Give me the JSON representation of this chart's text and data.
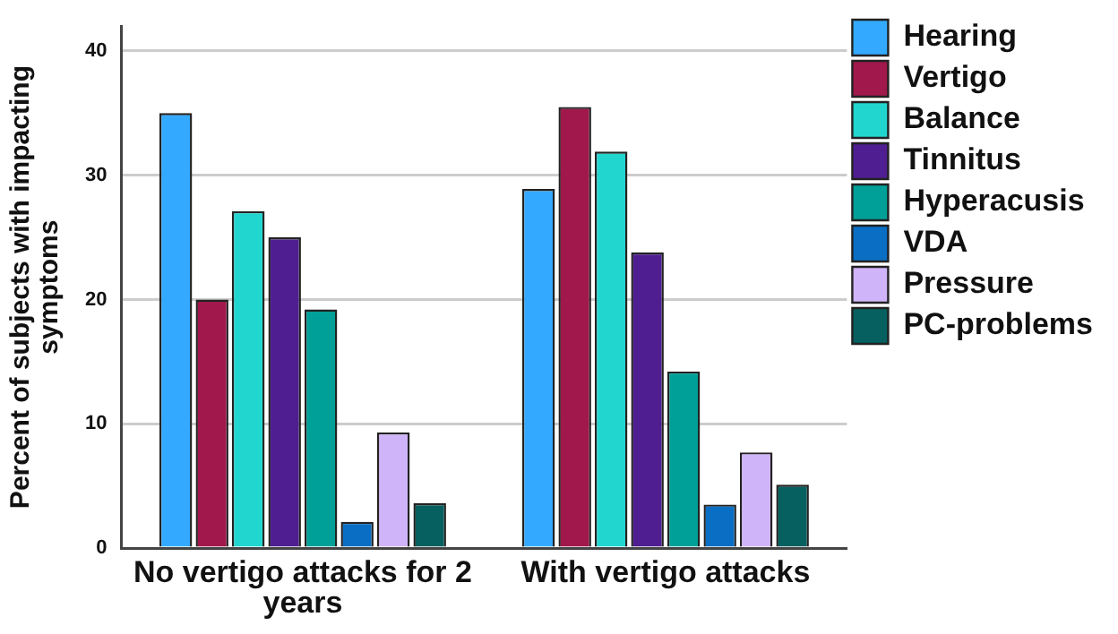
{
  "chart_data": {
    "type": "bar",
    "ylabel": "Percent of subjects with impacting symptoms",
    "categories": [
      "No vertigo attacks for 2 years",
      "With vertigo attacks"
    ],
    "series": [
      {
        "name": "Hearing",
        "color": "#33aaff",
        "values": [
          35,
          28.9
        ]
      },
      {
        "name": "Vertigo",
        "color": "#a0184c",
        "values": [
          20,
          35.5
        ]
      },
      {
        "name": "Balance",
        "color": "#22d6d0",
        "values": [
          27.1,
          31.9
        ]
      },
      {
        "name": "Tinnitus",
        "color": "#4f1f91",
        "values": [
          25,
          23.8
        ]
      },
      {
        "name": "Hyperacusis",
        "color": "#00a099",
        "values": [
          19.2,
          14.2
        ]
      },
      {
        "name": "VDA",
        "color": "#0a6fc4",
        "values": [
          2.1,
          3.5
        ]
      },
      {
        "name": "Pressure",
        "color": "#d0b4f9",
        "values": [
          9.3,
          7.7
        ]
      },
      {
        "name": "PC-problems",
        "color": "#066060",
        "values": [
          3.6,
          5.1
        ]
      }
    ],
    "ylim": [
      0,
      42
    ],
    "yticks": [
      0,
      10,
      20,
      30,
      40
    ],
    "grid": "y",
    "legend": "right"
  }
}
